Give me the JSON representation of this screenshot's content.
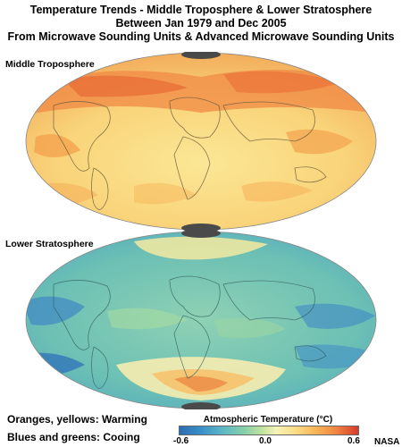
{
  "title": {
    "line1": "Temperature Trends - Middle Troposphere & Lower Stratosphere",
    "line2": "Between Jan 1979 and Dec 2005",
    "line3": "From Microwave Sounding Units & Advanced Microwave Sounding Units"
  },
  "panels": [
    {
      "label": "Middle Troposphere"
    },
    {
      "label": "Lower Stratosphere"
    }
  ],
  "legend": {
    "warming": "Oranges, yellows: Warming",
    "cooling": "Blues and greens: Cooing"
  },
  "colorbar": {
    "title": "Atmospheric Temperature (°C)",
    "min": "-0.6",
    "mid": "0.0",
    "max": "0.6",
    "colors": [
      "#2c6db5",
      "#3a8fc7",
      "#5db8c6",
      "#87cfa8",
      "#bfe3a0",
      "#f6f4b8",
      "#fbe08a",
      "#f8b659",
      "#ef8340",
      "#d63a2a"
    ]
  },
  "credit": "NASA"
}
